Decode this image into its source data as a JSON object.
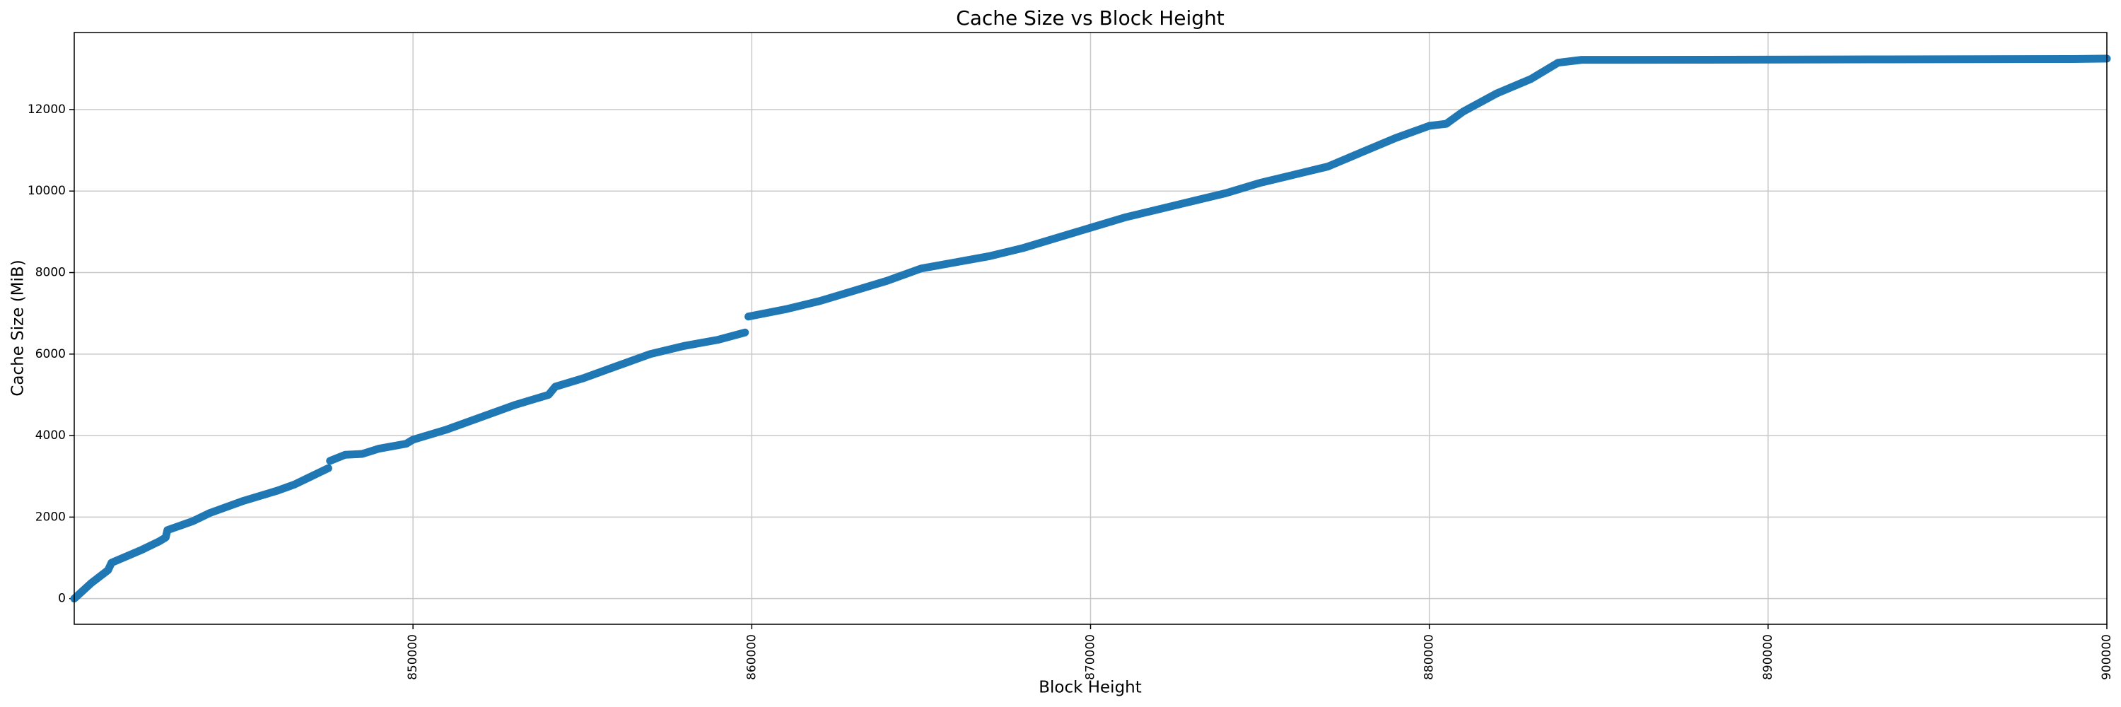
{
  "chart_data": {
    "type": "line",
    "title": "Cache Size vs Block Height",
    "xlabel": "Block Height",
    "ylabel": "Cache Size (MiB)",
    "x": [
      840000,
      840500,
      841000,
      841100,
      842000,
      842500,
      842700,
      842750,
      843500,
      844000,
      845000,
      846000,
      846500,
      847000,
      847500,
      null,
      847550,
      848000,
      848500,
      849000,
      849800,
      850000,
      851000,
      852000,
      853000,
      854000,
      854200,
      855000,
      856000,
      857000,
      858000,
      859000,
      859800,
      null,
      859900,
      861000,
      862000,
      863000,
      864000,
      865000,
      866000,
      867000,
      868000,
      869000,
      870000,
      871000,
      872000,
      873000,
      874000,
      875000,
      876000,
      877000,
      878000,
      879000,
      880000,
      880500,
      881000,
      882000,
      883000,
      883800,
      884500,
      886000,
      893000,
      899000,
      900000
    ],
    "series": [
      {
        "name": "Cache Size",
        "color": "#1f77b4",
        "values": [
          0,
          380,
          700,
          880,
          1200,
          1400,
          1500,
          1680,
          1900,
          2100,
          2400,
          2650,
          2800,
          3000,
          3200,
          null,
          3380,
          3530,
          3550,
          3680,
          3800,
          3900,
          4150,
          4450,
          4750,
          5000,
          5200,
          5400,
          5700,
          6000,
          6200,
          6350,
          6530,
          null,
          6920,
          7100,
          7300,
          7550,
          7800,
          8100,
          8250,
          8400,
          8600,
          8850,
          9100,
          9350,
          9550,
          9750,
          9950,
          10200,
          10400,
          10600,
          10950,
          11300,
          11600,
          11650,
          11950,
          12400,
          12750,
          13150,
          13220,
          13220,
          13230,
          13240,
          13250
        ]
      }
    ],
    "xlim": [
      840000,
      900000
    ],
    "xticks": [
      850000,
      860000,
      870000,
      880000,
      890000,
      900000
    ],
    "ylim": [
      -630,
      13890
    ],
    "yticks": [
      0,
      2000,
      4000,
      6000,
      8000,
      10000,
      12000
    ],
    "grid": true
  }
}
